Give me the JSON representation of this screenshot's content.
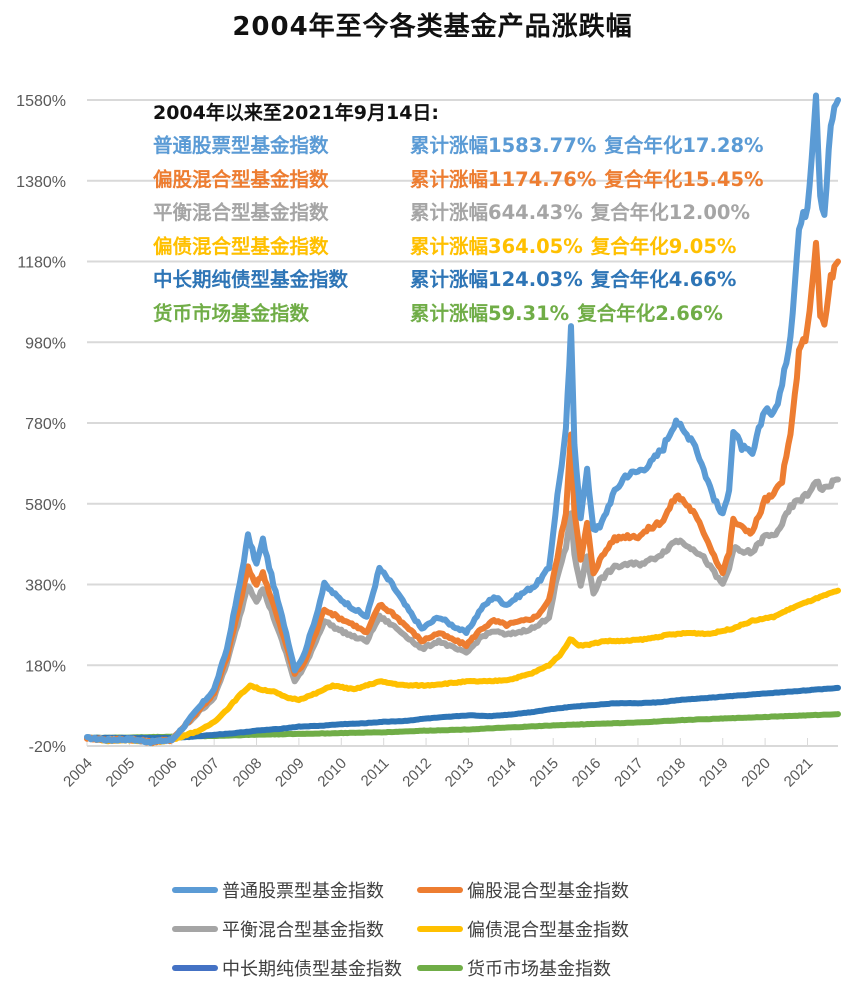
{
  "chart_data": {
    "type": "line",
    "title": "2004年至今各类基金产品涨跌幅",
    "xlabel": "",
    "ylabel": "",
    "ylim": [
      -20,
      1580
    ],
    "yticks": [
      "1580%",
      "1380%",
      "1180%",
      "980%",
      "780%",
      "580%",
      "380%",
      "180%",
      "-20%"
    ],
    "ytick_values": [
      1580,
      1380,
      1180,
      980,
      780,
      580,
      380,
      180,
      -20
    ],
    "xlim": [
      2004,
      2021.72
    ],
    "xticks": [
      "2004",
      "2005",
      "2006",
      "2007",
      "2008",
      "2009",
      "2010",
      "2011",
      "2012",
      "2013",
      "2014",
      "2015",
      "2016",
      "2017",
      "2018",
      "2019",
      "2020",
      "2021"
    ],
    "grid": true,
    "legend_position": "bottom",
    "annotation": {
      "header": "2004年以来至2021年9月14日:",
      "rows": [
        {
          "name": "普通股票型基金指数",
          "cumulative": "累计涨幅1583.77%",
          "annualized": "复合年化17.28%",
          "color": "#5B9BD5"
        },
        {
          "name": "偏股混合型基金指数",
          "cumulative": "累计涨幅1174.76%",
          "annualized": "复合年化15.45%",
          "color": "#ED7D31"
        },
        {
          "name": "平衡混合型基金指数",
          "cumulative": "累计涨幅644.43%",
          "annualized": "复合年化12.00%",
          "color": "#A5A5A5"
        },
        {
          "name": "偏债混合型基金指数",
          "cumulative": "累计涨幅364.05%",
          "annualized": "复合年化9.05%",
          "color": "#FFC000"
        },
        {
          "name": "中长期纯债型基金指数",
          "cumulative": "累计涨幅124.03%",
          "annualized": "复合年化4.66%",
          "color": "#2E75B6"
        },
        {
          "name": "货币市场基金指数",
          "cumulative": "累计涨幅59.31%",
          "annualized": "复合年化2.66%",
          "color": "#70AD47"
        }
      ]
    },
    "series": [
      {
        "name": "普通股票型基金指数",
        "color": "#5B9BD5",
        "x": [
          2004,
          2004.5,
          2005,
          2005.5,
          2006,
          2006.3,
          2006.6,
          2007,
          2007.3,
          2007.6,
          2007.8,
          2008.0,
          2008.15,
          2008.4,
          2008.7,
          2008.9,
          2009.1,
          2009.4,
          2009.6,
          2009.9,
          2010.3,
          2010.6,
          2010.9,
          2011.2,
          2011.5,
          2011.9,
          2012.3,
          2012.6,
          2012.95,
          2013.3,
          2013.6,
          2013.9,
          2014.3,
          2014.6,
          2014.9,
          2015.1,
          2015.3,
          2015.42,
          2015.5,
          2015.65,
          2015.8,
          2015.95,
          2016.1,
          2016.4,
          2016.7,
          2017.0,
          2017.3,
          2017.6,
          2017.9,
          2018.05,
          2018.3,
          2018.6,
          2018.85,
          2019.0,
          2019.15,
          2019.25,
          2019.45,
          2019.7,
          2020.0,
          2020.2,
          2020.4,
          2020.6,
          2020.8,
          2021.0,
          2021.1,
          2021.2,
          2021.3,
          2021.4,
          2021.55,
          2021.72
        ],
        "values": [
          0,
          -5,
          -3,
          -10,
          -5,
          30,
          70,
          120,
          220,
          380,
          500,
          430,
          490,
          380,
          260,
          170,
          200,
          300,
          380,
          350,
          320,
          300,
          420,
          380,
          330,
          270,
          300,
          280,
          260,
          320,
          350,
          330,
          360,
          380,
          420,
          600,
          760,
          1010,
          730,
          550,
          660,
          520,
          520,
          600,
          650,
          660,
          680,
          720,
          790,
          760,
          740,
          650,
          580,
          550,
          620,
          760,
          720,
          700,
          820,
          800,
          870,
          1000,
          1260,
          1320,
          1450,
          1600,
          1350,
          1300,
          1520,
          1580
        ]
      },
      {
        "name": "偏股混合型基金指数",
        "color": "#ED7D31",
        "x": [
          2004,
          2004.5,
          2005,
          2005.5,
          2006,
          2006.3,
          2006.6,
          2007,
          2007.3,
          2007.6,
          2007.8,
          2008.0,
          2008.15,
          2008.4,
          2008.7,
          2008.9,
          2009.1,
          2009.4,
          2009.6,
          2009.9,
          2010.3,
          2010.6,
          2010.9,
          2011.2,
          2011.5,
          2011.9,
          2012.3,
          2012.6,
          2012.95,
          2013.3,
          2013.6,
          2013.9,
          2014.3,
          2014.6,
          2014.9,
          2015.1,
          2015.3,
          2015.42,
          2015.5,
          2015.65,
          2015.8,
          2015.95,
          2016.1,
          2016.4,
          2016.7,
          2017.0,
          2017.3,
          2017.6,
          2017.9,
          2018.05,
          2018.3,
          2018.6,
          2018.85,
          2019.0,
          2019.15,
          2019.25,
          2019.45,
          2019.7,
          2020.0,
          2020.2,
          2020.4,
          2020.6,
          2020.8,
          2021.0,
          2021.1,
          2021.2,
          2021.3,
          2021.4,
          2021.55,
          2021.72
        ],
        "values": [
          0,
          -5,
          -3,
          -10,
          -5,
          30,
          65,
          110,
          200,
          330,
          420,
          380,
          410,
          330,
          230,
          160,
          180,
          260,
          320,
          300,
          280,
          260,
          330,
          310,
          280,
          240,
          260,
          245,
          230,
          270,
          290,
          280,
          290,
          300,
          340,
          450,
          560,
          760,
          560,
          440,
          530,
          410,
          440,
          490,
          500,
          500,
          520,
          540,
          600,
          590,
          560,
          500,
          440,
          410,
          460,
          540,
          520,
          510,
          590,
          600,
          640,
          750,
          950,
          1010,
          1120,
          1220,
          1050,
          1020,
          1140,
          1180
        ]
      },
      {
        "name": "平衡混合型基金指数",
        "color": "#A5A5A5",
        "x": [
          2004,
          2004.5,
          2005,
          2005.5,
          2006,
          2006.3,
          2006.6,
          2007,
          2007.3,
          2007.6,
          2007.8,
          2008.0,
          2008.15,
          2008.4,
          2008.7,
          2008.9,
          2009.1,
          2009.4,
          2009.6,
          2009.9,
          2010.3,
          2010.6,
          2010.9,
          2011.2,
          2011.5,
          2011.9,
          2012.3,
          2012.6,
          2012.95,
          2013.3,
          2013.6,
          2013.9,
          2014.3,
          2014.6,
          2014.9,
          2015.1,
          2015.3,
          2015.42,
          2015.5,
          2015.65,
          2015.8,
          2015.95,
          2016.1,
          2016.4,
          2016.7,
          2017.0,
          2017.3,
          2017.6,
          2017.9,
          2018.05,
          2018.3,
          2018.6,
          2018.85,
          2019.0,
          2019.15,
          2019.25,
          2019.45,
          2019.7,
          2020.0,
          2020.2,
          2020.4,
          2020.6,
          2020.8,
          2021.0,
          2021.1,
          2021.2,
          2021.3,
          2021.4,
          2021.55,
          2021.72
        ],
        "values": [
          0,
          -5,
          -3,
          -10,
          -5,
          28,
          60,
          100,
          185,
          300,
          380,
          340,
          370,
          300,
          210,
          140,
          170,
          240,
          290,
          270,
          250,
          240,
          300,
          280,
          255,
          220,
          240,
          225,
          210,
          250,
          265,
          255,
          265,
          275,
          300,
          400,
          470,
          560,
          450,
          380,
          450,
          360,
          390,
          420,
          430,
          430,
          440,
          460,
          490,
          485,
          470,
          440,
          400,
          380,
          420,
          470,
          460,
          460,
          500,
          500,
          530,
          570,
          590,
          600,
          620,
          640,
          620,
          615,
          630,
          640
        ]
      },
      {
        "name": "偏债混合型基金指数",
        "color": "#FFC000",
        "x": [
          2004,
          2004.5,
          2005,
          2005.5,
          2006,
          2006.4,
          2006.7,
          2007,
          2007.3,
          2007.6,
          2007.85,
          2008.1,
          2008.4,
          2008.7,
          2009.0,
          2009.4,
          2009.8,
          2010.3,
          2010.9,
          2011.5,
          2012.0,
          2012.5,
          2013.0,
          2013.5,
          2014.0,
          2014.5,
          2014.9,
          2015.2,
          2015.4,
          2015.6,
          2015.8,
          2016.2,
          2016.7,
          2017.2,
          2017.7,
          2018.2,
          2018.7,
          2019.2,
          2019.7,
          2020.2,
          2020.7,
          2021.2,
          2021.72
        ],
        "values": [
          0,
          -8,
          -5,
          -12,
          -5,
          10,
          20,
          40,
          70,
          105,
          130,
          120,
          115,
          100,
          95,
          110,
          130,
          120,
          140,
          130,
          130,
          135,
          140,
          140,
          145,
          160,
          180,
          210,
          245,
          230,
          230,
          240,
          240,
          245,
          255,
          260,
          258,
          270,
          290,
          300,
          325,
          345,
          365
        ]
      },
      {
        "name": "中长期纯债型基金指数",
        "color": "#2E75B6",
        "x": [
          2004,
          2005,
          2006,
          2006.5,
          2007,
          2007.5,
          2008,
          2008.5,
          2009,
          2009.5,
          2010,
          2010.5,
          2011,
          2011.5,
          2012,
          2012.5,
          2013,
          2013.5,
          2014,
          2014.5,
          2015,
          2015.5,
          2016,
          2016.5,
          2017,
          2017.5,
          2018,
          2018.5,
          2019,
          2019.5,
          2020,
          2020.5,
          2021,
          2021.72
        ],
        "values": [
          0,
          0,
          0,
          3,
          8,
          12,
          18,
          22,
          28,
          30,
          34,
          36,
          40,
          42,
          48,
          52,
          56,
          54,
          58,
          64,
          72,
          78,
          82,
          86,
          86,
          88,
          94,
          98,
          102,
          106,
          110,
          114,
          118,
          124
        ]
      },
      {
        "name": "货币市场基金指数",
        "color": "#70AD47",
        "x": [
          2004,
          2005,
          2006,
          2007,
          2008,
          2009,
          2010,
          2011,
          2012,
          2013,
          2014,
          2015,
          2016,
          2017,
          2018,
          2019,
          2020,
          2021,
          2021.72
        ],
        "values": [
          0,
          1,
          3,
          5,
          8,
          10,
          12,
          14,
          18,
          21,
          26,
          31,
          35,
          38,
          44,
          48,
          52,
          56,
          59
        ]
      }
    ]
  },
  "legend": [
    {
      "label": "普通股票型基金指数",
      "color": "#5B9BD5"
    },
    {
      "label": "偏股混合型基金指数",
      "color": "#ED7D31"
    },
    {
      "label": "平衡混合型基金指数",
      "color": "#A5A5A5"
    },
    {
      "label": "偏债混合型基金指数",
      "color": "#FFC000"
    },
    {
      "label": "中长期纯债型基金指数",
      "color": "#4472C4"
    },
    {
      "label": "货币市场基金指数",
      "color": "#70AD47"
    }
  ]
}
